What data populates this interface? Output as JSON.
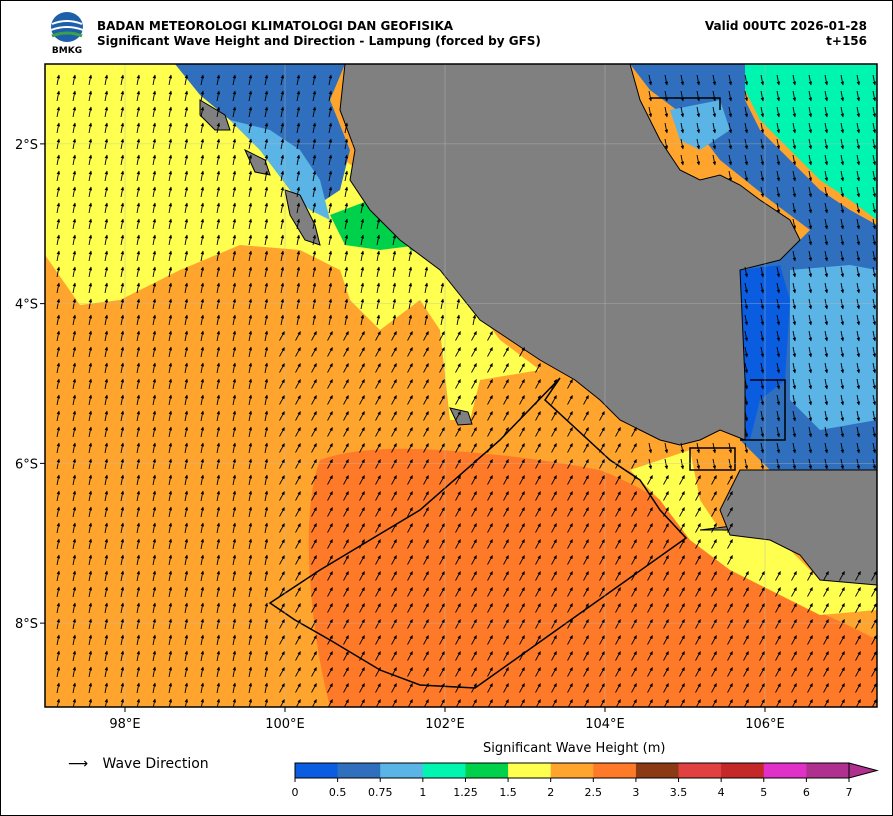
{
  "header": {
    "org": "BADAN METEOROLOGI KLIMATOLOGI DAN GEOFISIKA",
    "subtitle": "Significant Wave Height and Direction - Lampung (forced by GFS)",
    "valid": "Valid 00UTC 2026-01-28",
    "lead": "t+156",
    "logo_text": "BMKG"
  },
  "map": {
    "lon_range": [
      97,
      107.4
    ],
    "lat_range": [
      -9.05,
      -1.0
    ],
    "x_ticks": [
      "98°E",
      "100°E",
      "102°E",
      "104°E",
      "106°E"
    ],
    "y_ticks": [
      "2°S",
      "4°S",
      "6°S",
      "8°S"
    ],
    "land_color": "#808080",
    "grid": true
  },
  "legend": {
    "arrow_label": "Wave Direction"
  },
  "colorbar": {
    "title": "Significant Wave Height (m)",
    "labels": [
      "0",
      "0.5",
      "0.75",
      "1",
      "1.25",
      "1.5",
      "2",
      "2.5",
      "3",
      "3.5",
      "4",
      "5",
      "6",
      "7"
    ],
    "colors": [
      "#0a5de0",
      "#2f6fbd",
      "#5ab4e6",
      "#00f5b0",
      "#00d14a",
      "#ffff50",
      "#ffa52e",
      "#ff7a28",
      "#8b3a13",
      "#e04040",
      "#c42828",
      "#e030c8",
      "#b03090"
    ],
    "extend_color": "#b03090"
  }
}
